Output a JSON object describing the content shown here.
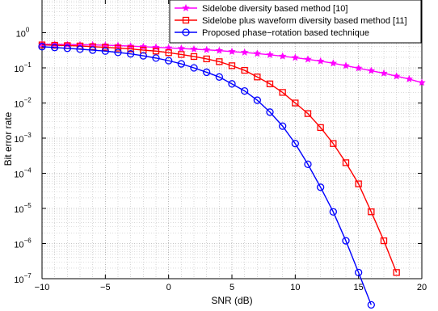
{
  "chart_data": {
    "type": "line",
    "xlabel": "SNR (dB)",
    "ylabel": "Bit error rate",
    "xlim": [
      -10,
      20
    ],
    "ylim": [
      1e-07,
      10
    ],
    "yscale": "log",
    "grid": true,
    "legend_position": "top-right",
    "x_ticks": [
      "−10",
      "−5",
      "0",
      "5",
      "10",
      "15",
      "20"
    ],
    "y_ticks": [
      {
        "base": "10",
        "exp": "−7"
      },
      {
        "base": "10",
        "exp": "−6"
      },
      {
        "base": "10",
        "exp": "−5"
      },
      {
        "base": "10",
        "exp": "−4"
      },
      {
        "base": "10",
        "exp": "−3"
      },
      {
        "base": "10",
        "exp": "−2"
      },
      {
        "base": "10",
        "exp": "−1"
      },
      {
        "base": "10",
        "exp": "0"
      }
    ],
    "series": [
      {
        "name": "Sidelobe diversity based method [10]",
        "color": "#ff00ff",
        "marker": "star",
        "x": [
          -10,
          -9,
          -8,
          -7,
          -6,
          -5,
          -4,
          -3,
          -2,
          -1,
          0,
          1,
          2,
          3,
          4,
          5,
          6,
          7,
          8,
          9,
          10,
          11,
          12,
          13,
          14,
          15,
          16,
          17,
          18,
          19,
          20
        ],
        "y": [
          0.47,
          0.465,
          0.46,
          0.455,
          0.45,
          0.44,
          0.43,
          0.415,
          0.4,
          0.385,
          0.37,
          0.355,
          0.34,
          0.325,
          0.31,
          0.29,
          0.275,
          0.255,
          0.235,
          0.215,
          0.195,
          0.175,
          0.155,
          0.135,
          0.115,
          0.098,
          0.083,
          0.07,
          0.058,
          0.048,
          0.038
        ]
      },
      {
        "name": "Sidelobe plus waveform diversity based method [11]",
        "color": "#ff0000",
        "marker": "square",
        "x": [
          -10,
          -9,
          -8,
          -7,
          -6,
          -5,
          -4,
          -3,
          -2,
          -1,
          0,
          1,
          2,
          3,
          4,
          5,
          6,
          7,
          8,
          9,
          10,
          11,
          12,
          13,
          14,
          15,
          16,
          17,
          18
        ],
        "y": [
          0.45,
          0.44,
          0.43,
          0.42,
          0.4,
          0.385,
          0.365,
          0.345,
          0.32,
          0.3,
          0.27,
          0.24,
          0.21,
          0.18,
          0.15,
          0.115,
          0.085,
          0.055,
          0.035,
          0.02,
          0.01,
          0.005,
          0.002,
          0.0007,
          0.0002,
          5e-05,
          8e-06,
          1.2e-06,
          1.5e-07
        ]
      },
      {
        "name": "Proposed phase−rotation based technique",
        "color": "#0000ff",
        "marker": "circle",
        "x": [
          -10,
          -9,
          -8,
          -7,
          -6,
          -5,
          -4,
          -3,
          -2,
          -1,
          0,
          1,
          2,
          3,
          4,
          5,
          6,
          7,
          8,
          9,
          10,
          11,
          12,
          13,
          14,
          15,
          16
        ],
        "y": [
          0.4,
          0.38,
          0.36,
          0.34,
          0.32,
          0.3,
          0.275,
          0.25,
          0.22,
          0.19,
          0.16,
          0.13,
          0.1,
          0.075,
          0.055,
          0.035,
          0.022,
          0.012,
          0.0055,
          0.0022,
          0.0007,
          0.00018,
          4e-05,
          8e-06,
          1.2e-06,
          1.5e-07,
          1.8e-08
        ]
      }
    ]
  }
}
